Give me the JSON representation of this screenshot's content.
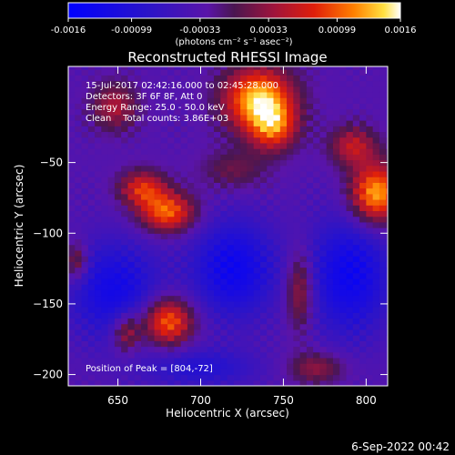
{
  "chart_data": {
    "type": "heatmap",
    "title": "Reconstructed RHESSI Image",
    "xlabel": "Heliocentric X (arcsec)",
    "ylabel": "Heliocentric Y (arcsec)",
    "xlim": [
      620,
      813
    ],
    "ylim": [
      -208,
      18
    ],
    "xticks": [
      650,
      700,
      750,
      800
    ],
    "yticks": [
      -50,
      -100,
      -150,
      -200
    ],
    "colorbar": {
      "min": -0.0016,
      "max": 0.0016,
      "ticks": [
        "-0.0016",
        "-0.00099",
        "-0.00033",
        "0.00033",
        "0.00099",
        "0.0016"
      ],
      "unit_label": "(photons cm⁻² s⁻¹ asec⁻²)"
    },
    "annotations": [
      "15-Jul-2017 02:42:16.000 to 02:45:28.000",
      "Detectors: 3F 6F 8F, Att 0",
      "Energy Range: 25.0 - 50.0 keV",
      "Clean    Total counts: 3.86E+03"
    ],
    "peak_label": "Position of Peak = [804,-72]",
    "peak": {
      "x": 804,
      "y": -72
    },
    "sources": [
      {
        "x": 735,
        "y": -5,
        "sx": 15,
        "sy": 16,
        "amp": 0.00175
      },
      {
        "x": 744,
        "y": -25,
        "sx": 10,
        "sy": 12,
        "amp": 0.0011
      },
      {
        "x": 806,
        "y": -72,
        "sx": 11,
        "sy": 15,
        "amp": 0.0017
      },
      {
        "x": 792,
        "y": -38,
        "sx": 10,
        "sy": 10,
        "amp": 0.0009
      },
      {
        "x": 680,
        "y": -85,
        "sx": 12,
        "sy": 10,
        "amp": 0.0014
      },
      {
        "x": 665,
        "y": -68,
        "sx": 10,
        "sy": 9,
        "amp": 0.0011
      },
      {
        "x": 680,
        "y": -162,
        "sx": 11,
        "sy": 12,
        "amp": 0.0015
      },
      {
        "x": 655,
        "y": -170,
        "sx": 6,
        "sy": 10,
        "amp": 0.0009
      },
      {
        "x": 648,
        "y": -10,
        "sx": 10,
        "sy": 12,
        "amp": 0.0008
      },
      {
        "x": 760,
        "y": -140,
        "sx": 6,
        "sy": 20,
        "amp": 0.0009
      },
      {
        "x": 770,
        "y": -195,
        "sx": 12,
        "sy": 8,
        "amp": 0.0007
      },
      {
        "x": 625,
        "y": -120,
        "sx": 5,
        "sy": 10,
        "amp": 0.0008
      },
      {
        "x": 720,
        "y": -55,
        "sx": 14,
        "sy": 10,
        "amp": 0.0005
      }
    ],
    "negative_regions": [
      {
        "x": 648,
        "y": -140,
        "sx": 20,
        "sy": 25,
        "amp": -0.0009
      },
      {
        "x": 720,
        "y": -125,
        "sx": 18,
        "sy": 25,
        "amp": -0.001
      },
      {
        "x": 790,
        "y": -130,
        "sx": 18,
        "sy": 30,
        "amp": -0.001
      },
      {
        "x": 700,
        "y": -195,
        "sx": 25,
        "sy": 10,
        "amp": -0.0006
      }
    ]
  },
  "footer": {
    "timestamp": "6-Sep-2022 00:42"
  }
}
